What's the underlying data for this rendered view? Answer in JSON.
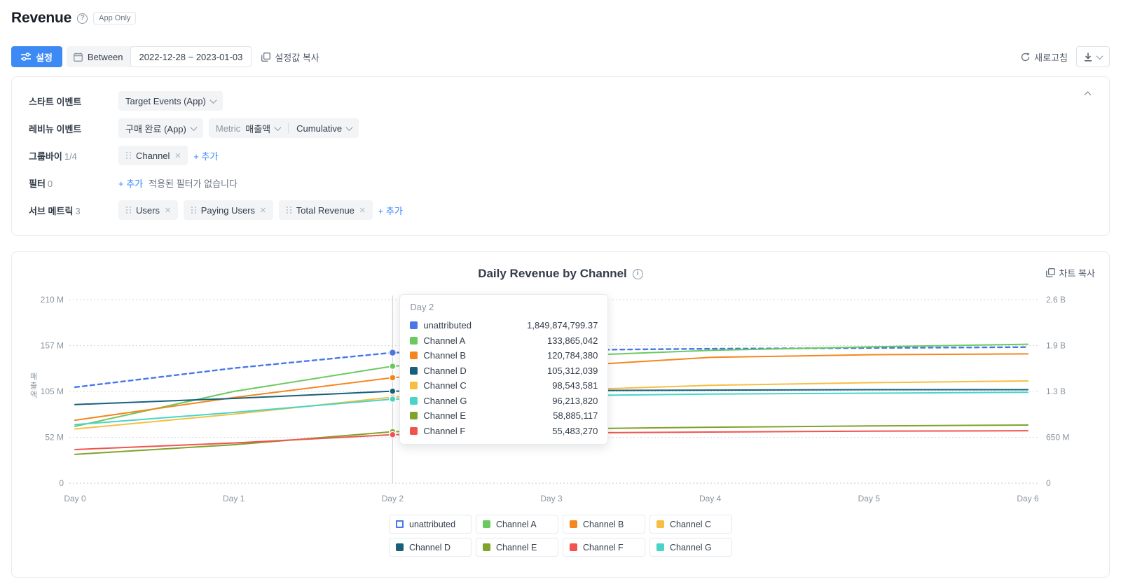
{
  "header": {
    "title": "Revenue",
    "badge": "App Only"
  },
  "toolbar": {
    "settings": "설정",
    "date_mode": "Between",
    "date_range": "2022-12-28 ~ 2023-01-03",
    "copy_settings": "설정값 복사",
    "refresh": "새로고침"
  },
  "config": {
    "start_event": {
      "label": "스타트 이벤트",
      "value": "Target Events (App)"
    },
    "revenue_event": {
      "label": "레비뉴 이벤트",
      "value": "구매 완료 (App)",
      "metric_label": "Metric",
      "metric_value": "매출액",
      "mode_value": "Cumulative"
    },
    "group_by": {
      "label": "그룹바이",
      "count": "1/4",
      "chips": [
        "Channel"
      ],
      "add": "+ 추가"
    },
    "filter": {
      "label": "필터",
      "count": "0",
      "add": "+ 추가",
      "empty": "적용된 필터가 없습니다"
    },
    "sub_metrics": {
      "label": "서브 메트릭",
      "count": "3",
      "chips": [
        "Users",
        "Paying Users",
        "Total Revenue"
      ],
      "add": "+ 추가"
    }
  },
  "chart_data": {
    "type": "line",
    "title": "Daily Revenue by Channel",
    "copy_chart": "차트 복사",
    "x_labels": [
      "Day 0",
      "Day 1",
      "Day 2",
      "Day 3",
      "Day 4",
      "Day 5",
      "Day 6"
    ],
    "left_axis": {
      "title": "매출액",
      "ticks": [
        "0",
        "52 M",
        "105 M",
        "157 M",
        "210 M"
      ],
      "max_m": 210
    },
    "right_axis": {
      "ticks": [
        "0",
        "650 M",
        "1.3 B",
        "1.9 B",
        "2.6 B"
      ],
      "max_m": 2600
    },
    "grid": true,
    "series": [
      {
        "name": "unattributed",
        "color": "#4878e8",
        "axis": "right",
        "dashed": true,
        "values_m": [
          1360,
          1630,
          1849.87,
          1885,
          1905,
          1916,
          1928
        ]
      },
      {
        "name": "Channel A",
        "color": "#6cc95e",
        "axis": "left",
        "values_m": [
          65,
          105,
          133.87,
          145,
          152,
          156,
          159
        ]
      },
      {
        "name": "Channel B",
        "color": "#f5861f",
        "axis": "left",
        "values_m": [
          72,
          98,
          120.78,
          133,
          144,
          147,
          148
        ]
      },
      {
        "name": "Channel C",
        "color": "#f6bf42",
        "axis": "left",
        "values_m": [
          62,
          79,
          98.54,
          106,
          112,
          115,
          117
        ]
      },
      {
        "name": "Channel D",
        "color": "#17607c",
        "axis": "left",
        "values_m": [
          90,
          97,
          105.31,
          106,
          106.5,
          107,
          107
        ]
      },
      {
        "name": "Channel E",
        "color": "#7fa32b",
        "axis": "left",
        "values_m": [
          33,
          44,
          58.89,
          62,
          64,
          65.5,
          66.5
        ]
      },
      {
        "name": "Channel F",
        "color": "#f1544f",
        "axis": "left",
        "values_m": [
          38.5,
          46,
          55.48,
          57.5,
          58.5,
          59.5,
          60
        ]
      },
      {
        "name": "Channel G",
        "color": "#48d5c8",
        "axis": "left",
        "values_m": [
          67,
          81,
          96.21,
          100,
          102,
          103,
          104
        ]
      }
    ],
    "hover": {
      "day_index": 2,
      "title": "Day 2",
      "rows": [
        {
          "name": "unattributed",
          "color": "#4878e8",
          "value": "1,849,874,799.37"
        },
        {
          "name": "Channel A",
          "color": "#6cc95e",
          "value": "133,865,042"
        },
        {
          "name": "Channel B",
          "color": "#f5861f",
          "value": "120,784,380"
        },
        {
          "name": "Channel D",
          "color": "#17607c",
          "value": "105,312,039"
        },
        {
          "name": "Channel C",
          "color": "#f6bf42",
          "value": "98,543,581"
        },
        {
          "name": "Channel G",
          "color": "#48d5c8",
          "value": "96,213,820"
        },
        {
          "name": "Channel E",
          "color": "#7fa32b",
          "value": "58,885,117"
        },
        {
          "name": "Channel F",
          "color": "#f1544f",
          "value": "55,483,270"
        }
      ]
    },
    "legend": [
      {
        "name": "unattributed",
        "color": "#4878e8",
        "dashed": true
      },
      {
        "name": "Channel A",
        "color": "#6cc95e"
      },
      {
        "name": "Channel B",
        "color": "#f5861f"
      },
      {
        "name": "Channel C",
        "color": "#f6bf42"
      },
      {
        "name": "Channel D",
        "color": "#17607c"
      },
      {
        "name": "Channel E",
        "color": "#7fa32b"
      },
      {
        "name": "Channel F",
        "color": "#f1544f"
      },
      {
        "name": "Channel G",
        "color": "#48d5c8"
      }
    ]
  }
}
